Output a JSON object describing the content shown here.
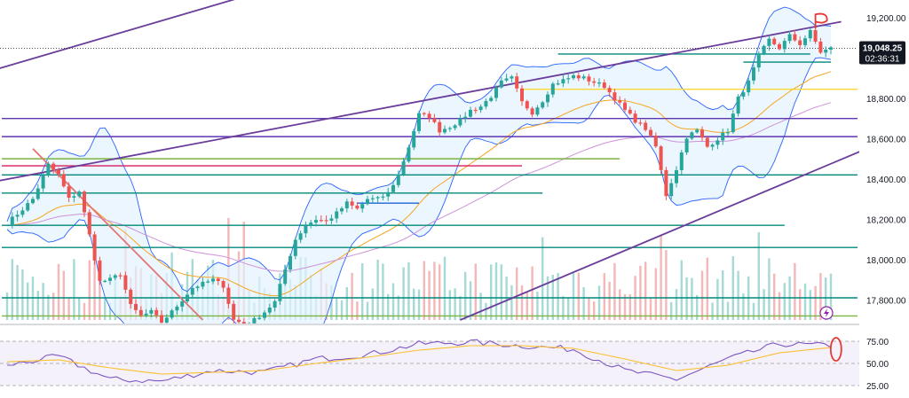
{
  "chart_data": [
    {
      "type": "candlestick",
      "panel": "price",
      "y_axis_side": "right",
      "ylim": [
        17700,
        19200
      ],
      "y_ticks": [
        "19,200.00",
        "18,800.00",
        "18,600.00",
        "18,400.00",
        "18,200.00",
        "18,000.00",
        "17,800.00"
      ],
      "last_price": 19048.25,
      "last_price_label": "19,048.25",
      "countdown": "02:36:31",
      "last_price_color": "#131722",
      "up_color": "#26a69a",
      "down_color": "#ef5350",
      "close_path": [
        [
          0,
          18180
        ],
        [
          3,
          18250
        ],
        [
          5,
          18300
        ],
        [
          8,
          18470
        ],
        [
          10,
          18420
        ],
        [
          12,
          18300
        ],
        [
          14,
          18340
        ],
        [
          16,
          18120
        ],
        [
          18,
          17890
        ],
        [
          20,
          17900
        ],
        [
          22,
          17930
        ],
        [
          24,
          17770
        ],
        [
          26,
          17720
        ],
        [
          28,
          17740
        ],
        [
          30,
          17690
        ],
        [
          32,
          17740
        ],
        [
          34,
          17800
        ],
        [
          36,
          17860
        ],
        [
          38,
          17880
        ],
        [
          40,
          17900
        ],
        [
          42,
          17870
        ],
        [
          44,
          17700
        ],
        [
          46,
          17680
        ],
        [
          48,
          17700
        ],
        [
          50,
          17740
        ],
        [
          52,
          17790
        ],
        [
          54,
          17950
        ],
        [
          56,
          18100
        ],
        [
          58,
          18170
        ],
        [
          60,
          18200
        ],
        [
          62,
          18190
        ],
        [
          64,
          18230
        ],
        [
          66,
          18280
        ],
        [
          68,
          18250
        ],
        [
          70,
          18300
        ],
        [
          72,
          18300
        ],
        [
          74,
          18330
        ],
        [
          76,
          18420
        ],
        [
          78,
          18560
        ],
        [
          80,
          18720
        ],
        [
          82,
          18710
        ],
        [
          84,
          18640
        ],
        [
          86,
          18660
        ],
        [
          88,
          18690
        ],
        [
          90,
          18740
        ],
        [
          92,
          18760
        ],
        [
          94,
          18810
        ],
        [
          96,
          18880
        ],
        [
          98,
          18900
        ],
        [
          100,
          18780
        ],
        [
          102,
          18730
        ],
        [
          104,
          18790
        ],
        [
          106,
          18870
        ],
        [
          108,
          18890
        ],
        [
          110,
          18910
        ],
        [
          112,
          18900
        ],
        [
          114,
          18880
        ],
        [
          116,
          18860
        ],
        [
          118,
          18800
        ],
        [
          120,
          18740
        ],
        [
          122,
          18690
        ],
        [
          124,
          18650
        ],
        [
          126,
          18560
        ],
        [
          128,
          18320
        ],
        [
          130,
          18450
        ],
        [
          132,
          18610
        ],
        [
          134,
          18640
        ],
        [
          136,
          18560
        ],
        [
          138,
          18600
        ],
        [
          140,
          18640
        ],
        [
          142,
          18800
        ],
        [
          144,
          18880
        ],
        [
          146,
          19010
        ],
        [
          148,
          19090
        ],
        [
          150,
          19050
        ],
        [
          152,
          19110
        ],
        [
          154,
          19070
        ],
        [
          156,
          19130
        ],
        [
          158,
          19030
        ],
        [
          160,
          19048
        ]
      ],
      "channel_lines": [
        {
          "color": "#6a3d9a",
          "points": [
            [
              -8,
              18900
            ],
            [
              88,
              19620
            ]
          ]
        },
        {
          "color": "#6a3d9a",
          "points": [
            [
              -8,
              18360
            ],
            [
              162,
              19180
            ]
          ]
        },
        {
          "color": "#6a3d9a",
          "points": [
            [
              88,
              17700
            ],
            [
              166,
              18540
            ]
          ]
        }
      ],
      "trend_lines": [
        {
          "color": "#e57373",
          "points": [
            [
              5,
              18550
            ],
            [
              38,
              17700
            ]
          ]
        }
      ],
      "horizontal_levels": [
        {
          "value": 18700,
          "color": "#5e35b1",
          "x_start": -8,
          "x_end": 166
        },
        {
          "value": 18610,
          "color": "#5e35b1",
          "x_start": -8,
          "x_end": 166
        },
        {
          "value": 18500,
          "color": "#7cb342",
          "x_start": -8,
          "x_end": 119
        },
        {
          "value": 18465,
          "color": "#d81b60",
          "x_start": -8,
          "x_end": 100
        },
        {
          "value": 18420,
          "color": "#00897b",
          "x_start": -8,
          "x_end": 166
        },
        {
          "value": 18330,
          "color": "#00897b",
          "x_start": -8,
          "x_end": 104
        },
        {
          "value": 18170,
          "color": "#00897b",
          "x_start": -8,
          "x_end": 151
        },
        {
          "value": 18060,
          "color": "#00897b",
          "x_start": -8,
          "x_end": 166
        },
        {
          "value": 17810,
          "color": "#00897b",
          "x_start": -8,
          "x_end": 166
        },
        {
          "value": 17720,
          "color": "#7cb342",
          "x_start": -8,
          "x_end": 166
        },
        {
          "value": 18845,
          "color": "#fdd835",
          "x_start": 100,
          "x_end": 166
        },
        {
          "value": 19020,
          "color": "#00897b",
          "x_start": 107,
          "x_end": 156
        },
        {
          "value": 18980,
          "color": "#00897b",
          "x_start": 143,
          "x_end": 160
        },
        {
          "value": 18280,
          "color": "#1e63d6",
          "x_start": 68,
          "x_end": 80
        }
      ],
      "annotations": [
        {
          "type": "hand-drawn-flag",
          "color": "#e53935",
          "at": [
            157,
            19190
          ]
        }
      ]
    },
    {
      "type": "line",
      "panel": "oscillator",
      "y_axis_side": "right",
      "ylim": [
        20,
        85
      ],
      "y_ticks": [
        "75.00",
        "50.00",
        "25.00"
      ],
      "levels": [
        75,
        50,
        25
      ],
      "series": [
        {
          "color": "#7e57c2",
          "x": [
            0,
            10,
            20,
            30,
            40,
            50,
            60,
            70,
            80,
            90,
            100,
            110,
            120,
            130,
            140,
            150,
            160
          ],
          "values": [
            48,
            58,
            32,
            30,
            42,
            40,
            55,
            60,
            72,
            74,
            70,
            66,
            42,
            32,
            55,
            72,
            70
          ]
        },
        {
          "color": "#fbc02d",
          "x": [
            0,
            10,
            20,
            30,
            40,
            50,
            60,
            70,
            80,
            90,
            100,
            110,
            120,
            130,
            140,
            150,
            160
          ],
          "values": [
            52,
            54,
            45,
            38,
            40,
            42,
            50,
            57,
            65,
            70,
            70,
            67,
            55,
            42,
            48,
            62,
            68
          ]
        }
      ],
      "annotations": [
        {
          "type": "hand-drawn-circle",
          "color": "#e53935",
          "at": [
            161,
            66
          ]
        }
      ]
    }
  ],
  "ui": {
    "icons": {
      "bolt": "lightning-icon"
    },
    "accent": "#8e24aa"
  }
}
